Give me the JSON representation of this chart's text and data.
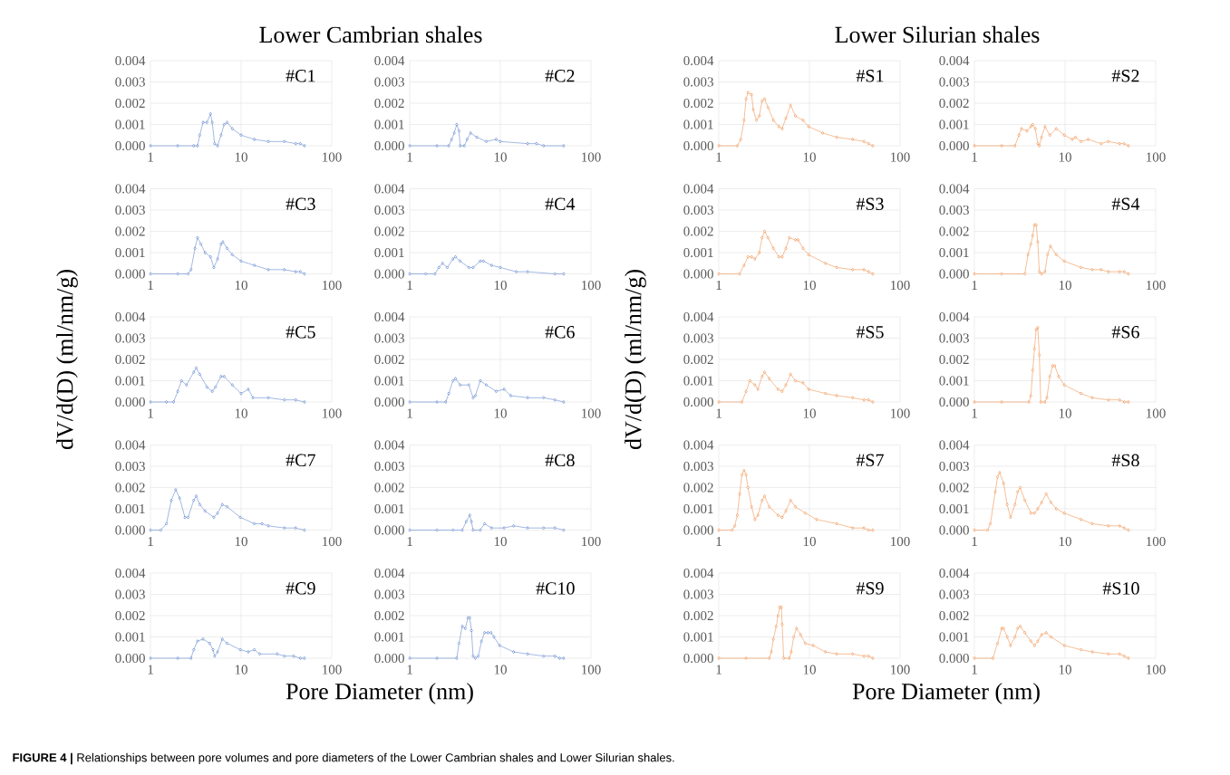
{
  "chart_data": [
    {
      "type": "line",
      "title": "Lower Cambrian shales",
      "annotations": [
        "#C1",
        "**FIGURE 4 |** Relationships between pore volumes and pore diameters of the Lower Cambrian shales and Lower Silurian shales."
      ],
      "color": "#4472c4",
      "marker": "diamond",
      "line_style": "solid",
      "log": "x",
      "grid": true,
      "xlim": [
        1,
        100
      ],
      "ylim": [
        0,
        0.004
      ],
      "xticks": [
        1,
        10,
        100
      ],
      "yticks": [
        {
          "value": 0,
          "label": "0.000"
        },
        {
          "value": 0.001,
          "label": "0.001"
        },
        {
          "value": 0.002,
          "label": "0.002"
        },
        {
          "value": 0.003,
          "label": "0.003"
        },
        {
          "value": 0.004,
          "label": "0.004"
        }
      ],
      "x": [
        1,
        2,
        3,
        3.3,
        3.5,
        3.8,
        4.2,
        4.6,
        4.8,
        5.1,
        5.5,
        6,
        6.5,
        7,
        8,
        10,
        14,
        20,
        30,
        40,
        45,
        50
      ],
      "values": [
        0,
        0,
        0,
        0,
        0.0005,
        0.0011,
        0.0011,
        0.0015,
        0.0011,
        0.0001,
        0,
        0.0005,
        0.001,
        0.0011,
        0.0008,
        0.0005,
        0.0003,
        0.0002,
        0.0002,
        0.0001,
        0.0001,
        0
      ]
    },
    {
      "type": "line",
      "annotations": [
        "#C2"
      ],
      "color": "#4472c4",
      "marker": "diamond",
      "line_style": "solid",
      "log": "x",
      "grid": true,
      "xlim": [
        1,
        100
      ],
      "ylim": [
        0,
        0.004
      ],
      "xticks": [
        1,
        10,
        100
      ],
      "yticks": [
        {
          "value": 0,
          "label": "0.000"
        },
        {
          "value": 0.001,
          "label": "0.001"
        },
        {
          "value": 0.002,
          "label": "0.002"
        },
        {
          "value": 0.003,
          "label": "0.003"
        },
        {
          "value": 0.004,
          "label": "0.004"
        }
      ],
      "x": [
        1,
        2,
        2.7,
        2.9,
        3.1,
        3.3,
        3.5,
        3.6,
        4,
        4.3,
        4.7,
        5.5,
        7,
        9,
        10,
        20,
        25,
        30,
        50
      ],
      "values": [
        0,
        0,
        0,
        0.0003,
        0.0006,
        0.001,
        0.0007,
        0,
        0,
        0.0003,
        0.0006,
        0.0004,
        0.0002,
        0.0003,
        0.0002,
        0.0001,
        0.0001,
        0,
        0
      ]
    },
    {
      "type": "line",
      "annotations": [
        "#C3"
      ],
      "color": "#4472c4",
      "marker": "diamond",
      "line_style": "solid",
      "log": "x",
      "grid": true,
      "xlim": [
        1,
        100
      ],
      "ylim": [
        0,
        0.004
      ],
      "xticks": [
        1,
        10,
        100
      ],
      "yticks": [
        {
          "value": 0,
          "label": "0.000"
        },
        {
          "value": 0.001,
          "label": "0.001"
        },
        {
          "value": 0.002,
          "label": "0.002"
        },
        {
          "value": 0.003,
          "label": "0.003"
        },
        {
          "value": 0.004,
          "label": "0.004"
        }
      ],
      "x": [
        1,
        2,
        2.6,
        2.8,
        3.1,
        3.3,
        3.6,
        4,
        4.6,
        5,
        5.5,
        6,
        6.3,
        7,
        8,
        10,
        14,
        20,
        30,
        40,
        45,
        50
      ],
      "values": [
        0,
        0,
        0,
        0.0002,
        0.0012,
        0.0017,
        0.0014,
        0.001,
        0.0008,
        0.0003,
        0.0007,
        0.0014,
        0.0015,
        0.0012,
        0.0009,
        0.0006,
        0.0004,
        0.0002,
        0.0002,
        0.0001,
        0.0001,
        0
      ]
    },
    {
      "type": "line",
      "annotations": [
        "#C4"
      ],
      "color": "#4472c4",
      "marker": "diamond",
      "line_style": "solid",
      "log": "x",
      "grid": true,
      "xlim": [
        1,
        100
      ],
      "ylim": [
        0,
        0.004
      ],
      "xticks": [
        1,
        10,
        100
      ],
      "yticks": [
        {
          "value": 0,
          "label": "0.000"
        },
        {
          "value": 0.001,
          "label": "0.001"
        },
        {
          "value": 0.002,
          "label": "0.002"
        },
        {
          "value": 0.003,
          "label": "0.003"
        },
        {
          "value": 0.004,
          "label": "0.004"
        }
      ],
      "x": [
        1,
        1.5,
        1.9,
        2.1,
        2.3,
        2.6,
        3,
        3.2,
        3.6,
        4.5,
        5,
        6,
        6.5,
        8,
        10,
        15,
        20,
        40,
        50
      ],
      "values": [
        0,
        0,
        0,
        0.0003,
        0.0005,
        0.0003,
        0.0007,
        0.0008,
        0.0006,
        0.0003,
        0.0003,
        0.0006,
        0.0006,
        0.0004,
        0.0003,
        0.0001,
        0.0001,
        0,
        0
      ]
    },
    {
      "type": "line",
      "ylabel": "dV/d(D) (ml/nm/g)",
      "annotations": [
        "#C5"
      ],
      "color": "#4472c4",
      "marker": "diamond",
      "line_style": "solid",
      "log": "x",
      "grid": true,
      "xlim": [
        1,
        100
      ],
      "ylim": [
        0,
        0.004
      ],
      "xticks": [
        1,
        10,
        100
      ],
      "yticks": [
        {
          "value": 0,
          "label": "0.000"
        },
        {
          "value": 0.001,
          "label": "0.001"
        },
        {
          "value": 0.002,
          "label": "0.002"
        },
        {
          "value": 0.003,
          "label": "0.003"
        },
        {
          "value": 0.004,
          "label": "0.004"
        }
      ],
      "x": [
        1,
        1.5,
        1.8,
        2,
        2.2,
        2.5,
        3,
        3.2,
        3.5,
        4.2,
        4.8,
        5.2,
        6,
        6.5,
        8,
        10,
        12,
        13.5,
        20,
        30,
        40,
        50
      ],
      "values": [
        0,
        0,
        0,
        0.0005,
        0.001,
        0.0008,
        0.0014,
        0.0016,
        0.0013,
        0.0007,
        0.0005,
        0.0007,
        0.0012,
        0.0012,
        0.0008,
        0.0004,
        0.0006,
        0.0002,
        0.0002,
        0.0001,
        0.0001,
        0
      ]
    },
    {
      "type": "line",
      "annotations": [
        "#C6"
      ],
      "color": "#4472c4",
      "marker": "diamond",
      "line_style": "solid",
      "log": "x",
      "grid": true,
      "xlim": [
        1,
        100
      ],
      "ylim": [
        0,
        0.004
      ],
      "xticks": [
        1,
        10,
        100
      ],
      "yticks": [
        {
          "value": 0,
          "label": "0.000"
        },
        {
          "value": 0.001,
          "label": "0.001"
        },
        {
          "value": 0.002,
          "label": "0.002"
        },
        {
          "value": 0.003,
          "label": "0.003"
        },
        {
          "value": 0.004,
          "label": "0.004"
        }
      ],
      "x": [
        1,
        2,
        2.5,
        2.7,
        3,
        3.2,
        3.6,
        4.5,
        5,
        5.3,
        6,
        7,
        9,
        11,
        13,
        20,
        30,
        40,
        50
      ],
      "values": [
        0,
        0,
        0,
        0.0004,
        0.001,
        0.0011,
        0.0008,
        0.0008,
        0.0002,
        0.0003,
        0.001,
        0.0008,
        0.0005,
        0.0006,
        0.0003,
        0.0002,
        0.0002,
        0.0001,
        0
      ]
    },
    {
      "type": "line",
      "annotations": [
        "#C7"
      ],
      "color": "#4472c4",
      "marker": "diamond",
      "line_style": "solid",
      "log": "x",
      "grid": true,
      "xlim": [
        1,
        100
      ],
      "ylim": [
        0,
        0.004
      ],
      "xticks": [
        1,
        10,
        100
      ],
      "yticks": [
        {
          "value": 0,
          "label": "0.000"
        },
        {
          "value": 0.001,
          "label": "0.001"
        },
        {
          "value": 0.002,
          "label": "0.002"
        },
        {
          "value": 0.003,
          "label": "0.003"
        },
        {
          "value": 0.004,
          "label": "0.004"
        }
      ],
      "x": [
        1,
        1.3,
        1.5,
        1.7,
        1.9,
        2.1,
        2.4,
        2.6,
        3,
        3.2,
        3.5,
        4,
        5,
        5.5,
        6.2,
        7,
        9.8,
        14,
        17,
        20,
        30,
        40,
        50
      ],
      "values": [
        0,
        0,
        0.0003,
        0.0014,
        0.0019,
        0.0015,
        0.0006,
        0.0006,
        0.0014,
        0.0016,
        0.0012,
        0.0009,
        0.0006,
        0.0008,
        0.0012,
        0.0011,
        0.0006,
        0.0003,
        0.0003,
        0.0002,
        0.0001,
        0.0001,
        0
      ]
    },
    {
      "type": "line",
      "annotations": [
        "#C8"
      ],
      "color": "#4472c4",
      "marker": "diamond",
      "line_style": "solid",
      "log": "x",
      "grid": true,
      "xlim": [
        1,
        100
      ],
      "ylim": [
        0,
        0.004
      ],
      "xticks": [
        1,
        10,
        100
      ],
      "yticks": [
        {
          "value": 0,
          "label": "0.000"
        },
        {
          "value": 0.001,
          "label": "0.001"
        },
        {
          "value": 0.002,
          "label": "0.002"
        },
        {
          "value": 0.003,
          "label": "0.003"
        },
        {
          "value": 0.004,
          "label": "0.004"
        }
      ],
      "x": [
        1,
        2,
        3,
        3.8,
        4.2,
        4.6,
        4.8,
        5,
        6,
        6.7,
        8,
        11,
        14,
        20,
        30,
        40,
        50
      ],
      "values": [
        0,
        0,
        0,
        0,
        0.0004,
        0.0007,
        0.0004,
        0,
        0,
        0.0003,
        0.0001,
        0.0001,
        0.0002,
        0.0001,
        0.0001,
        0.0001,
        0
      ]
    },
    {
      "type": "line",
      "xlabel": "Pore Diameter (nm)",
      "annotations": [
        "#C9"
      ],
      "color": "#4472c4",
      "marker": "diamond",
      "line_style": "solid",
      "log": "x",
      "grid": true,
      "xlim": [
        1,
        100
      ],
      "ylim": [
        0,
        0.004
      ],
      "xticks": [
        1,
        10,
        100
      ],
      "yticks": [
        {
          "value": 0,
          "label": "0.000"
        },
        {
          "value": 0.001,
          "label": "0.001"
        },
        {
          "value": 0.002,
          "label": "0.002"
        },
        {
          "value": 0.003,
          "label": "0.003"
        },
        {
          "value": 0.004,
          "label": "0.004"
        }
      ],
      "x": [
        1,
        2,
        2.8,
        3,
        3.3,
        3.8,
        4.5,
        4.9,
        5.1,
        5.5,
        6.2,
        7,
        9.8,
        12,
        14,
        16,
        25,
        30,
        38,
        45,
        50
      ],
      "values": [
        0,
        0,
        0,
        0.0004,
        0.0008,
        0.0009,
        0.0007,
        0.0004,
        0.0001,
        0.0003,
        0.0009,
        0.0007,
        0.0004,
        0.0003,
        0.0004,
        0.0002,
        0.0002,
        0.0001,
        0.0001,
        0,
        0
      ]
    },
    {
      "type": "line",
      "annotations": [
        "#C10"
      ],
      "color": "#4472c4",
      "marker": "diamond",
      "line_style": "solid",
      "log": "x",
      "grid": true,
      "xlim": [
        1,
        100
      ],
      "ylim": [
        0,
        0.004
      ],
      "xticks": [
        1,
        10,
        100
      ],
      "yticks": [
        {
          "value": 0,
          "label": "0.000"
        },
        {
          "value": 0.001,
          "label": "0.001"
        },
        {
          "value": 0.002,
          "label": "0.002"
        },
        {
          "value": 0.003,
          "label": "0.003"
        },
        {
          "value": 0.004,
          "label": "0.004"
        }
      ],
      "x": [
        1,
        2,
        3.3,
        3.5,
        3.8,
        4.1,
        4.4,
        4.6,
        4.8,
        5,
        5.3,
        5.7,
        6.2,
        6.7,
        7.3,
        7.9,
        8.5,
        9.8,
        14,
        20,
        30,
        40,
        45,
        50
      ],
      "values": [
        0,
        0,
        0,
        0.0007,
        0.0015,
        0.0014,
        0.0019,
        0.0019,
        0.0013,
        0.0001,
        0,
        0.0001,
        0.0008,
        0.0012,
        0.0012,
        0.0012,
        0.001,
        0.0006,
        0.0003,
        0.0002,
        0.0001,
        0.0001,
        0,
        0
      ]
    },
    {
      "type": "line",
      "title": "Lower Silurian shales",
      "annotations": [
        "#S1"
      ],
      "color": "#ed7d31",
      "marker": "diamond",
      "line_style": "solid",
      "log": "x",
      "grid": true,
      "xlim": [
        1,
        100
      ],
      "ylim": [
        0,
        0.004
      ],
      "xticks": [
        1,
        10,
        100
      ],
      "yticks": [
        {
          "value": 0,
          "label": "0.000"
        },
        {
          "value": 0.001,
          "label": "0.001"
        },
        {
          "value": 0.002,
          "label": "0.002"
        },
        {
          "value": 0.003,
          "label": "0.003"
        },
        {
          "value": 0.004,
          "label": "0.004"
        }
      ],
      "x": [
        1,
        1.6,
        1.75,
        1.9,
        2,
        2.1,
        2.3,
        2.4,
        2.6,
        2.8,
        3,
        3.2,
        3.5,
        4,
        4.6,
        5,
        5.5,
        6.2,
        7,
        8.5,
        9.8,
        14,
        20,
        30,
        40,
        45,
        50
      ],
      "values": [
        0,
        0,
        0.0003,
        0.0012,
        0.0022,
        0.0025,
        0.0024,
        0.0017,
        0.0012,
        0.0014,
        0.0021,
        0.0022,
        0.0018,
        0.0012,
        0.0009,
        0.0008,
        0.0013,
        0.0019,
        0.0014,
        0.0012,
        0.0009,
        0.0006,
        0.0004,
        0.0003,
        0.0002,
        0.0001,
        0
      ]
    },
    {
      "type": "line",
      "annotations": [
        "#S2"
      ],
      "color": "#ed7d31",
      "marker": "diamond",
      "line_style": "solid",
      "log": "x",
      "grid": true,
      "xlim": [
        1,
        100
      ],
      "ylim": [
        0,
        0.004
      ],
      "xticks": [
        1,
        10,
        100
      ],
      "yticks": [
        {
          "value": 0,
          "label": "0.000"
        },
        {
          "value": 0.001,
          "label": "0.001"
        },
        {
          "value": 0.002,
          "label": "0.002"
        },
        {
          "value": 0.003,
          "label": "0.003"
        },
        {
          "value": 0.004,
          "label": "0.004"
        }
      ],
      "x": [
        1,
        2,
        2.8,
        3.1,
        3.3,
        3.8,
        4.2,
        4.4,
        4.7,
        5,
        5.2,
        5.5,
        6,
        6.8,
        8,
        9.8,
        12,
        13,
        15,
        18,
        25,
        30,
        40,
        45,
        50
      ],
      "values": [
        0,
        0,
        0,
        0.0005,
        0.0008,
        0.0007,
        0.0009,
        0.001,
        0.0008,
        0.0001,
        0,
        0.0004,
        0.0009,
        0.0005,
        0.0008,
        0.0005,
        0.0003,
        0.0004,
        0.0002,
        0.0003,
        0.0001,
        0.0002,
        0.0001,
        0.0001,
        0
      ]
    },
    {
      "type": "line",
      "annotations": [
        "#S3"
      ],
      "color": "#ed7d31",
      "marker": "diamond",
      "line_style": "solid",
      "log": "x",
      "grid": true,
      "xlim": [
        1,
        100
      ],
      "ylim": [
        0,
        0.004
      ],
      "xticks": [
        1,
        10,
        100
      ],
      "yticks": [
        {
          "value": 0,
          "label": "0.000"
        },
        {
          "value": 0.001,
          "label": "0.001"
        },
        {
          "value": 0.002,
          "label": "0.002"
        },
        {
          "value": 0.003,
          "label": "0.003"
        },
        {
          "value": 0.004,
          "label": "0.004"
        }
      ],
      "x": [
        1,
        1.7,
        1.9,
        2.1,
        2.3,
        2.5,
        2.8,
        3,
        3.2,
        3.5,
        4,
        4.6,
        5,
        5.5,
        6,
        7,
        7.5,
        8.5,
        9.8,
        15,
        20,
        30,
        40,
        45,
        50
      ],
      "values": [
        0,
        0,
        0.0004,
        0.0008,
        0.0008,
        0.0007,
        0.001,
        0.0017,
        0.002,
        0.0017,
        0.0012,
        0.0008,
        0.0008,
        0.0012,
        0.0017,
        0.0016,
        0.0016,
        0.0012,
        0.0009,
        0.0005,
        0.0003,
        0.0002,
        0.0002,
        0.0001,
        0
      ]
    },
    {
      "type": "line",
      "annotations": [
        "#S4"
      ],
      "color": "#ed7d31",
      "marker": "diamond",
      "line_style": "solid",
      "log": "x",
      "grid": true,
      "xlim": [
        1,
        100
      ],
      "ylim": [
        0,
        0.004
      ],
      "xticks": [
        1,
        10,
        100
      ],
      "yticks": [
        {
          "value": 0,
          "label": "0.000"
        },
        {
          "value": 0.001,
          "label": "0.001"
        },
        {
          "value": 0.002,
          "label": "0.002"
        },
        {
          "value": 0.003,
          "label": "0.003"
        },
        {
          "value": 0.004,
          "label": "0.004"
        }
      ],
      "x": [
        1,
        2,
        3.6,
        3.9,
        4.2,
        4.4,
        4.6,
        4.8,
        5,
        5.2,
        5.5,
        6,
        6.4,
        6.9,
        8,
        9.8,
        15,
        20,
        25,
        30,
        40,
        45,
        50
      ],
      "values": [
        0,
        0,
        0,
        0.0009,
        0.0014,
        0.0018,
        0.0023,
        0.0023,
        0.0015,
        0.0001,
        0,
        0.0001,
        0.0009,
        0.0013,
        0.0009,
        0.0006,
        0.0003,
        0.0002,
        0.0002,
        0.0001,
        0.0001,
        0.0001,
        0
      ]
    },
    {
      "type": "line",
      "ylabel": "dV/d(D) (ml/nm/g)",
      "annotations": [
        "#S5"
      ],
      "color": "#ed7d31",
      "marker": "diamond",
      "line_style": "solid",
      "log": "x",
      "grid": true,
      "xlim": [
        1,
        100
      ],
      "ylim": [
        0,
        0.004
      ],
      "xticks": [
        1,
        10,
        100
      ],
      "yticks": [
        {
          "value": 0,
          "label": "0.000"
        },
        {
          "value": 0.001,
          "label": "0.001"
        },
        {
          "value": 0.002,
          "label": "0.002"
        },
        {
          "value": 0.003,
          "label": "0.003"
        },
        {
          "value": 0.004,
          "label": "0.004"
        }
      ],
      "x": [
        1,
        1.8,
        2,
        2.2,
        2.5,
        2.7,
        3,
        3.2,
        3.6,
        4.5,
        5,
        5.5,
        6.2,
        7,
        8.5,
        9.8,
        15,
        20,
        30,
        40,
        45,
        50
      ],
      "values": [
        0,
        0,
        0.0005,
        0.001,
        0.0008,
        0.0006,
        0.0012,
        0.0014,
        0.0011,
        0.0006,
        0.0005,
        0.0008,
        0.0013,
        0.001,
        0.0009,
        0.0006,
        0.0004,
        0.0003,
        0.0002,
        0.0001,
        0.0001,
        0
      ]
    },
    {
      "type": "line",
      "annotations": [
        "#S6"
      ],
      "color": "#ed7d31",
      "marker": "diamond",
      "line_style": "solid",
      "log": "x",
      "grid": true,
      "xlim": [
        1,
        100
      ],
      "ylim": [
        0,
        0.004
      ],
      "xticks": [
        1,
        10,
        100
      ],
      "yticks": [
        {
          "value": 0,
          "label": "0.000"
        },
        {
          "value": 0.001,
          "label": "0.001"
        },
        {
          "value": 0.002,
          "label": "0.002"
        },
        {
          "value": 0.003,
          "label": "0.003"
        },
        {
          "value": 0.004,
          "label": "0.004"
        }
      ],
      "x": [
        1,
        2,
        4,
        4.2,
        4.4,
        4.6,
        4.8,
        5,
        5.2,
        5.4,
        6,
        6.3,
        6.8,
        7.3,
        7.7,
        8.5,
        9.8,
        15,
        20,
        30,
        40,
        45,
        50
      ],
      "values": [
        0,
        0,
        0,
        0.0003,
        0.0015,
        0.0025,
        0.0034,
        0.0035,
        0.0022,
        0,
        0,
        0.0002,
        0.0012,
        0.0017,
        0.0017,
        0.0012,
        0.0008,
        0.0004,
        0.0002,
        0.0001,
        0.0001,
        0,
        0
      ]
    },
    {
      "type": "line",
      "annotations": [
        "#S7"
      ],
      "color": "#ed7d31",
      "marker": "diamond",
      "line_style": "solid",
      "log": "x",
      "grid": true,
      "xlim": [
        1,
        100
      ],
      "ylim": [
        0,
        0.004
      ],
      "xticks": [
        1,
        10,
        100
      ],
      "yticks": [
        {
          "value": 0,
          "label": "0.000"
        },
        {
          "value": 0.001,
          "label": "0.001"
        },
        {
          "value": 0.002,
          "label": "0.002"
        },
        {
          "value": 0.003,
          "label": "0.003"
        },
        {
          "value": 0.004,
          "label": "0.004"
        }
      ],
      "x": [
        1,
        1.4,
        1.5,
        1.6,
        1.7,
        1.8,
        1.9,
        2,
        2.1,
        2.3,
        2.5,
        2.7,
        3,
        3.2,
        3.6,
        4.5,
        5,
        5.5,
        6.2,
        7,
        9,
        12,
        20,
        30,
        40,
        45,
        50
      ],
      "values": [
        0,
        0,
        0.0002,
        0.0007,
        0.0017,
        0.0026,
        0.0028,
        0.0026,
        0.002,
        0.0011,
        0.0005,
        0.0007,
        0.0014,
        0.0016,
        0.0011,
        0.0007,
        0.0006,
        0.0009,
        0.0014,
        0.0011,
        0.0008,
        0.0005,
        0.0003,
        0.0001,
        0.0001,
        0,
        0
      ]
    },
    {
      "type": "line",
      "annotations": [
        "#S8"
      ],
      "color": "#ed7d31",
      "marker": "diamond",
      "line_style": "solid",
      "log": "x",
      "grid": true,
      "xlim": [
        1,
        100
      ],
      "ylim": [
        0,
        0.004
      ],
      "xticks": [
        1,
        10,
        100
      ],
      "yticks": [
        {
          "value": 0,
          "label": "0.000"
        },
        {
          "value": 0.001,
          "label": "0.001"
        },
        {
          "value": 0.002,
          "label": "0.002"
        },
        {
          "value": 0.003,
          "label": "0.003"
        },
        {
          "value": 0.004,
          "label": "0.004"
        }
      ],
      "x": [
        1,
        1.4,
        1.5,
        1.7,
        1.8,
        1.9,
        2.1,
        2.3,
        2.5,
        2.8,
        3,
        3.2,
        3.6,
        4.2,
        4.6,
        5,
        5.5,
        6.2,
        7,
        8,
        9.8,
        15,
        20,
        30,
        40,
        45,
        50
      ],
      "values": [
        0,
        0,
        0.0003,
        0.0018,
        0.0025,
        0.0027,
        0.0022,
        0.0012,
        0.0006,
        0.0012,
        0.0018,
        0.002,
        0.0014,
        0.0008,
        0.0008,
        0.001,
        0.0013,
        0.0017,
        0.0013,
        0.001,
        0.0008,
        0.0005,
        0.0003,
        0.0002,
        0.0002,
        0.0001,
        0
      ]
    },
    {
      "type": "line",
      "xlabel": "Pore Diameter (nm)",
      "annotations": [
        "#S9"
      ],
      "color": "#ed7d31",
      "marker": "diamond",
      "line_style": "solid",
      "log": "x",
      "grid": true,
      "xlim": [
        1,
        100
      ],
      "ylim": [
        0,
        0.004
      ],
      "xticks": [
        1,
        10,
        100
      ],
      "yticks": [
        {
          "value": 0,
          "label": "0.000"
        },
        {
          "value": 0.001,
          "label": "0.001"
        },
        {
          "value": 0.002,
          "label": "0.002"
        },
        {
          "value": 0.003,
          "label": "0.003"
        },
        {
          "value": 0.004,
          "label": "0.004"
        }
      ],
      "x": [
        1,
        2,
        3.6,
        3.8,
        4,
        4.3,
        4.5,
        4.7,
        4.9,
        5,
        5.2,
        6,
        6.3,
        6.7,
        7.2,
        8,
        9,
        11,
        15,
        20,
        30,
        40,
        45,
        50
      ],
      "values": [
        0,
        0,
        0,
        0.0003,
        0.0009,
        0.0015,
        0.002,
        0.0024,
        0.0024,
        0.0016,
        0,
        0,
        0.0003,
        0.001,
        0.0014,
        0.0011,
        0.0007,
        0.0006,
        0.0003,
        0.0002,
        0.0002,
        0.0001,
        0.0001,
        0
      ]
    },
    {
      "type": "line",
      "annotations": [
        "#S10"
      ],
      "color": "#ed7d31",
      "marker": "diamond",
      "line_style": "solid",
      "log": "x",
      "grid": true,
      "xlim": [
        1,
        100
      ],
      "ylim": [
        0,
        0.004
      ],
      "xticks": [
        1,
        10,
        100
      ],
      "yticks": [
        {
          "value": 0,
          "label": "0.000"
        },
        {
          "value": 0.001,
          "label": "0.001"
        },
        {
          "value": 0.002,
          "label": "0.002"
        },
        {
          "value": 0.003,
          "label": "0.003"
        },
        {
          "value": 0.004,
          "label": "0.004"
        }
      ],
      "x": [
        1,
        1.6,
        1.8,
        2,
        2.1,
        2.3,
        2.5,
        2.8,
        3,
        3.2,
        3.6,
        4.2,
        4.6,
        5,
        5.5,
        6.2,
        7,
        9.8,
        15,
        20,
        30,
        40,
        45,
        50
      ],
      "values": [
        0,
        0,
        0.0007,
        0.0014,
        0.0014,
        0.001,
        0.0006,
        0.001,
        0.0014,
        0.0015,
        0.0012,
        0.0008,
        0.0006,
        0.0008,
        0.0011,
        0.0012,
        0.001,
        0.0006,
        0.0004,
        0.0003,
        0.0002,
        0.0002,
        0.0001,
        0
      ]
    }
  ]
}
